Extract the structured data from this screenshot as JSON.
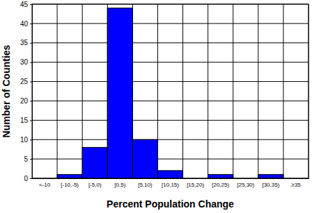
{
  "chart_data": {
    "type": "bar",
    "x_label": "Percent Population Change",
    "y_label": "Number of Counties",
    "categories": [
      "<-10",
      "[-10,-5)",
      "[-5,0)",
      "[0,5)",
      "[5,10)",
      "[10,15)",
      "[15,20)",
      "[20,25)",
      "[25,30)",
      "[30,35)",
      "≥35"
    ],
    "values": [
      0,
      1,
      8,
      44,
      10,
      2,
      0,
      1,
      0,
      1,
      0
    ],
    "color": "#0000ff",
    "ylim": [
      0,
      45
    ],
    "yticks": [
      0,
      5,
      10,
      15,
      20,
      25,
      30,
      35,
      40,
      45
    ],
    "grid": true
  }
}
